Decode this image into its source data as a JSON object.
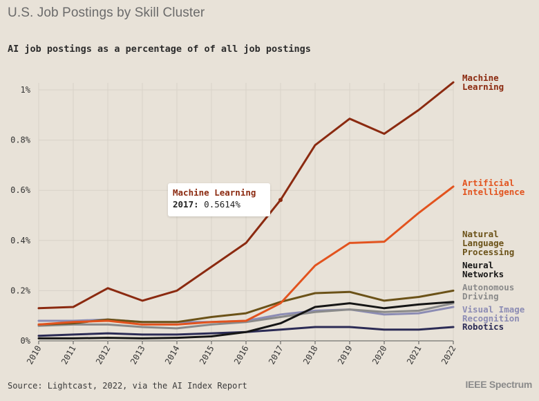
{
  "header": {
    "title": "U.S. Job Postings by Skill Cluster",
    "subtitle": "AI job postings as a percentage of of all job postings"
  },
  "footer": {
    "source": "Source: Lightcast, 2022, via the AI Index Report",
    "brand": "IEEE Spectrum"
  },
  "tooltip": {
    "series": "Machine Learning",
    "year": "2017:",
    "value": "0.5614%"
  },
  "chart_data": {
    "type": "line",
    "title": "AI job postings as a percentage of of all job postings",
    "x": [
      2010,
      2011,
      2012,
      2013,
      2014,
      2015,
      2016,
      2017,
      2018,
      2019,
      2020,
      2021,
      2022
    ],
    "ylim": [
      0,
      1.1
    ],
    "yticks": [
      0,
      0.2,
      0.4,
      0.6,
      0.8,
      1.0
    ],
    "ytick_labels": [
      "0%",
      "0.2%",
      "0.4%",
      "0.6%",
      "0.8%",
      "1%"
    ],
    "grid": true,
    "legend": "right, at line ends",
    "series": [
      {
        "name": "Robotics",
        "label_lines": [
          "Robotics"
        ],
        "color": "#2b2b55",
        "values": [
          0.02,
          0.025,
          0.03,
          0.025,
          0.025,
          0.03,
          0.035,
          0.045,
          0.055,
          0.055,
          0.045,
          0.045,
          0.055
        ]
      },
      {
        "name": "Visual Image Recognition",
        "label_lines": [
          "Visual Image",
          "Recognition"
        ],
        "color": "#8c8cb4",
        "values": [
          0.08,
          0.08,
          0.085,
          0.075,
          0.075,
          0.075,
          0.08,
          0.105,
          0.12,
          0.125,
          0.105,
          0.11,
          0.135
        ]
      },
      {
        "name": "Autonomous Driving",
        "label_lines": [
          "Autonomous",
          "Driving"
        ],
        "color": "#8a8a8a",
        "values": [
          0.06,
          0.065,
          0.065,
          0.055,
          0.05,
          0.065,
          0.075,
          0.095,
          0.115,
          0.125,
          0.115,
          0.12,
          0.15
        ]
      },
      {
        "name": "Neural Networks",
        "label_lines": [
          "Neural",
          "Networks"
        ],
        "color": "#151515",
        "values": [
          0.01,
          0.01,
          0.012,
          0.01,
          0.012,
          0.018,
          0.035,
          0.07,
          0.135,
          0.15,
          0.13,
          0.145,
          0.155
        ]
      },
      {
        "name": "Natural Language Processing",
        "label_lines": [
          "Natural",
          "Language",
          "Processing"
        ],
        "color": "#6b5218",
        "values": [
          0.065,
          0.07,
          0.085,
          0.075,
          0.075,
          0.095,
          0.11,
          0.155,
          0.19,
          0.195,
          0.16,
          0.175,
          0.2
        ]
      },
      {
        "name": "Artificial Intelligence",
        "label_lines": [
          "Artificial",
          "Intelligence"
        ],
        "color": "#e2531e",
        "values": [
          0.065,
          0.075,
          0.08,
          0.065,
          0.065,
          0.075,
          0.08,
          0.15,
          0.3,
          0.39,
          0.395,
          0.51,
          0.615
        ]
      },
      {
        "name": "Machine Learning",
        "label_lines": [
          "Machine",
          "Learning"
        ],
        "color": "#8b2a10",
        "values": [
          0.13,
          0.135,
          0.21,
          0.16,
          0.2,
          0.295,
          0.39,
          0.5614,
          0.78,
          0.885,
          0.825,
          0.92,
          1.03
        ]
      }
    ]
  }
}
